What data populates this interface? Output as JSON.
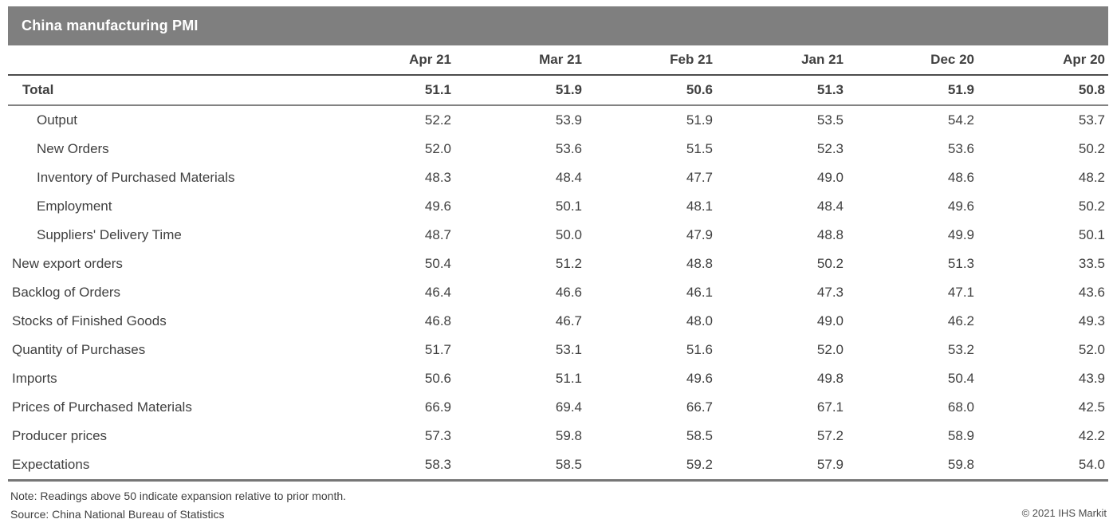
{
  "title_bar": {
    "title": "China manufacturing PMI"
  },
  "chart_data": {
    "type": "table",
    "title": "China manufacturing PMI",
    "columns": [
      "Apr 21",
      "Mar 21",
      "Feb 21",
      "Jan 21",
      "Dec 20",
      "Apr 20"
    ],
    "rows": [
      {
        "label": "Total",
        "indent": 1,
        "bold": true,
        "values": [
          "51.1",
          "51.9",
          "50.6",
          "51.3",
          "51.9",
          "50.8"
        ]
      },
      {
        "label": "Output",
        "indent": 2,
        "bold": false,
        "values": [
          "52.2",
          "53.9",
          "51.9",
          "53.5",
          "54.2",
          "53.7"
        ]
      },
      {
        "label": "New Orders",
        "indent": 2,
        "bold": false,
        "values": [
          "52.0",
          "53.6",
          "51.5",
          "52.3",
          "53.6",
          "50.2"
        ]
      },
      {
        "label": "Inventory of Purchased Materials",
        "indent": 2,
        "bold": false,
        "values": [
          "48.3",
          "48.4",
          "47.7",
          "49.0",
          "48.6",
          "48.2"
        ]
      },
      {
        "label": "Employment",
        "indent": 2,
        "bold": false,
        "values": [
          "49.6",
          "50.1",
          "48.1",
          "48.4",
          "49.6",
          "50.2"
        ]
      },
      {
        "label": "Suppliers' Delivery Time",
        "indent": 2,
        "bold": false,
        "values": [
          "48.7",
          "50.0",
          "47.9",
          "48.8",
          "49.9",
          "50.1"
        ]
      },
      {
        "label": "New export orders",
        "indent": 0,
        "bold": false,
        "values": [
          "50.4",
          "51.2",
          "48.8",
          "50.2",
          "51.3",
          "33.5"
        ]
      },
      {
        "label": "Backlog of Orders",
        "indent": 0,
        "bold": false,
        "values": [
          "46.4",
          "46.6",
          "46.1",
          "47.3",
          "47.1",
          "43.6"
        ]
      },
      {
        "label": "Stocks of Finished Goods",
        "indent": 0,
        "bold": false,
        "values": [
          "46.8",
          "46.7",
          "48.0",
          "49.0",
          "46.2",
          "49.3"
        ]
      },
      {
        "label": "Quantity of Purchases",
        "indent": 0,
        "bold": false,
        "values": [
          "51.7",
          "53.1",
          "51.6",
          "52.0",
          "53.2",
          "52.0"
        ]
      },
      {
        "label": "Imports",
        "indent": 0,
        "bold": false,
        "values": [
          "50.6",
          "51.1",
          "49.6",
          "49.8",
          "50.4",
          "43.9"
        ]
      },
      {
        "label": "Prices of Purchased Materials",
        "indent": 0,
        "bold": false,
        "values": [
          "66.9",
          "69.4",
          "66.7",
          "67.1",
          "68.0",
          "42.5"
        ]
      },
      {
        "label": "Producer prices",
        "indent": 0,
        "bold": false,
        "values": [
          "57.3",
          "59.8",
          "58.5",
          "57.2",
          "58.9",
          "42.2"
        ]
      },
      {
        "label": "Expectations",
        "indent": 0,
        "bold": false,
        "values": [
          "58.3",
          "58.5",
          "59.2",
          "57.9",
          "59.8",
          "54.0"
        ]
      }
    ],
    "layout_hints": {
      "grid": "off",
      "header_row_bold": true,
      "values_alignment": "right"
    }
  },
  "footer": {
    "note": "Note: Readings above 50 indicate expansion relative to prior month.",
    "source": "Source: China National Bureau of Statistics",
    "copyright": "© 2021 IHS Markit"
  },
  "colors": {
    "title_bar_bg": "#7f7f7f",
    "title_text": "#ffffff",
    "body_text": "#404040",
    "header_rule": "#4d4d4d",
    "total_rule": "#828282",
    "bottom_rule": "#767676"
  }
}
